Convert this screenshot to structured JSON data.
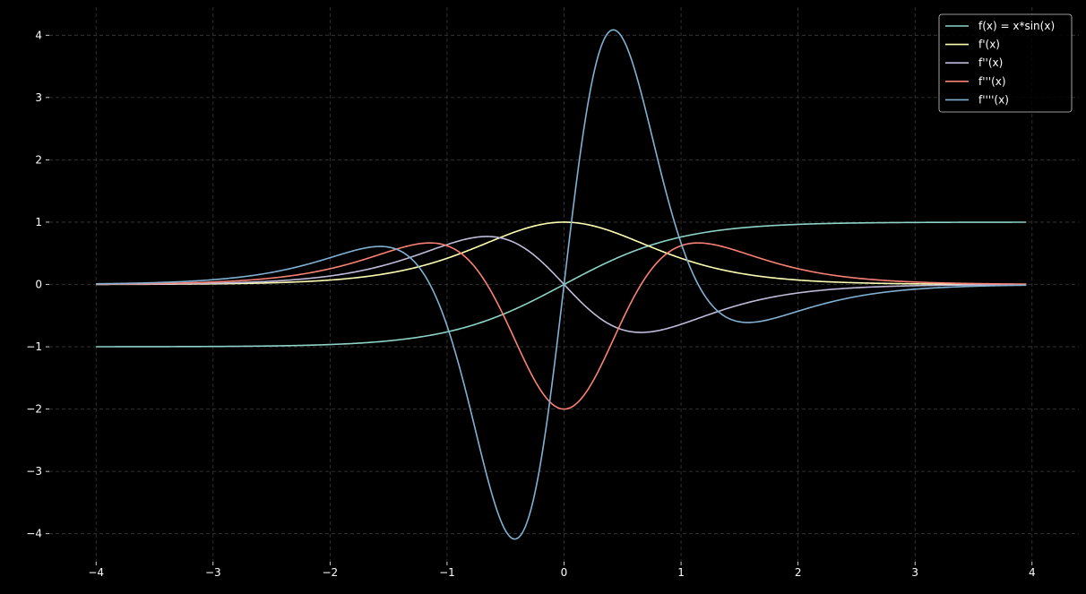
{
  "chart_data": {
    "type": "line",
    "title": "",
    "xlabel": "",
    "ylabel": "",
    "xlim": [
      -4.4,
      4.4
    ],
    "ylim": [
      -4.45,
      4.45
    ],
    "grid": true,
    "legend_position": "top-right",
    "x_ticks": [
      -4,
      -3,
      -2,
      -1,
      0,
      1,
      2,
      3,
      4
    ],
    "y_ticks": [
      -4,
      -3,
      -2,
      -1,
      0,
      1,
      2,
      3,
      4
    ],
    "x_tick_labels": [
      "−4",
      "−3",
      "−2",
      "−1",
      "0",
      "1",
      "2",
      "3",
      "4"
    ],
    "y_tick_labels": [
      "−4",
      "−3",
      "−2",
      "−1",
      "0",
      "1",
      "2",
      "3",
      "4"
    ],
    "x_domain": [
      -4,
      3.95
    ],
    "series": [
      {
        "name": "f(x) = x*sin(x)",
        "color": "#8dd3c7",
        "derivative": 0
      },
      {
        "name": "f'(x)",
        "color": "#feffb3",
        "derivative": 1
      },
      {
        "name": "f''(x)",
        "color": "#bfbbd9",
        "derivative": 2
      },
      {
        "name": "f'''(x)",
        "color": "#fa8174",
        "derivative": 3
      },
      {
        "name": "f''''(x)",
        "color": "#81b1d2",
        "derivative": 4
      }
    ]
  }
}
